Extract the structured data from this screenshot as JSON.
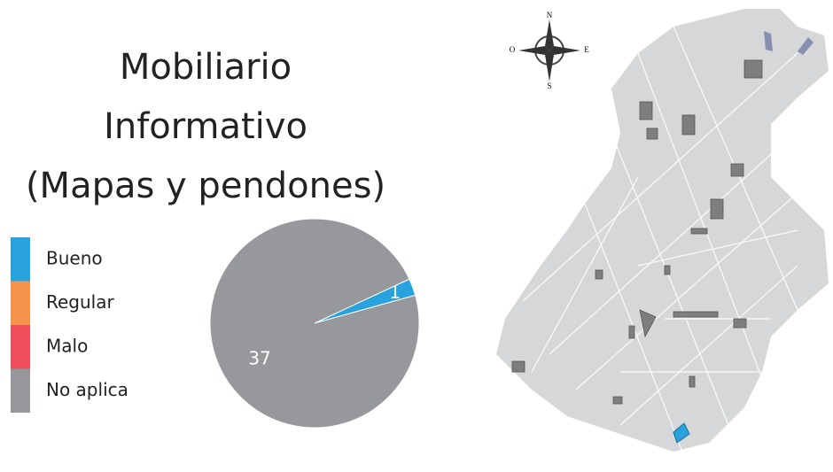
{
  "chart_data": {
    "type": "pie",
    "title": [
      "Mobiliario",
      "Informativo",
      "(Mapas y pendones)"
    ],
    "categories": [
      "Bueno",
      "Regular",
      "Malo",
      "No aplica"
    ],
    "values": [
      1,
      0,
      0,
      37
    ],
    "colors": [
      "#29a3dd",
      "#f7944b",
      "#ef4d5a",
      "#97989b"
    ],
    "value_labels": [
      "1",
      null,
      null,
      "37"
    ],
    "legend": "left"
  },
  "compass": {
    "n": "N",
    "o": "O",
    "e": "E",
    "s": "S"
  }
}
